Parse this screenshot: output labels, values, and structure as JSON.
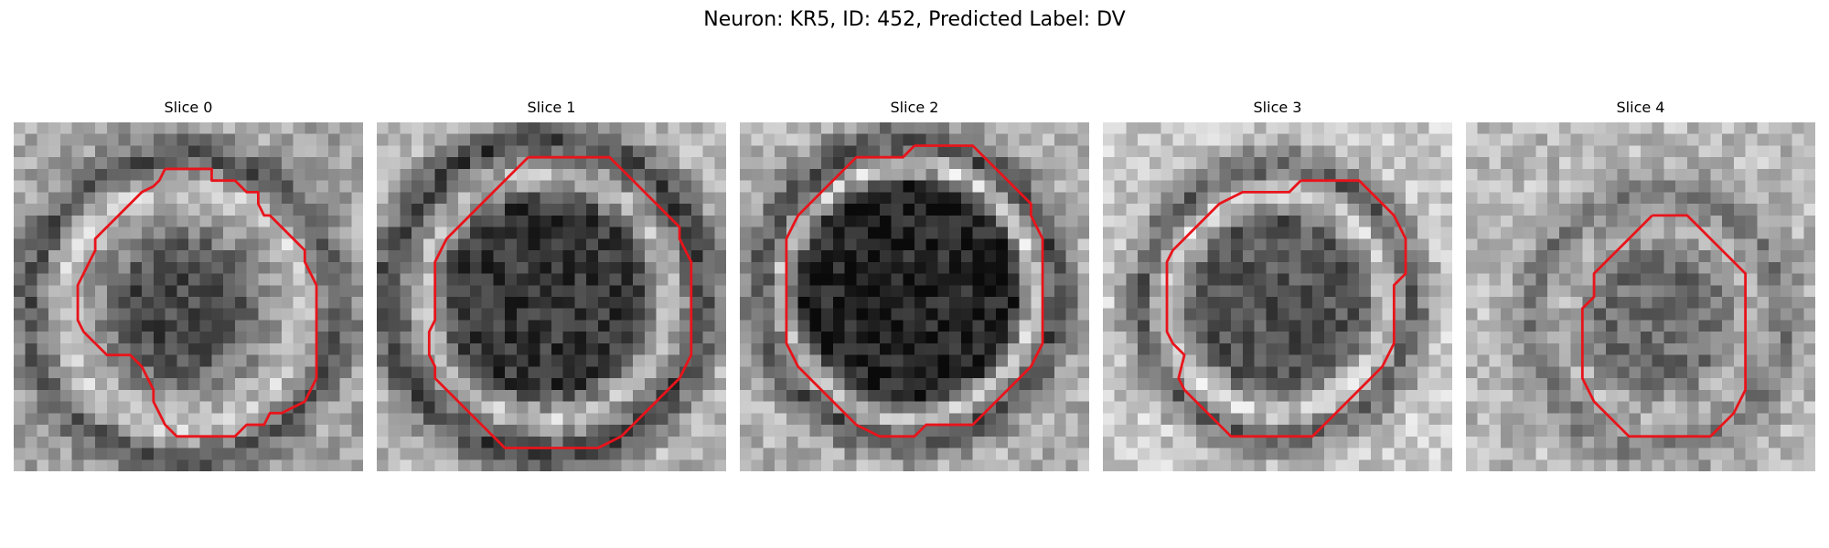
{
  "figure": {
    "title": "Neuron: KR5, ID: 452, Predicted Label: DV"
  },
  "panels": [
    {
      "title": "Slice 0"
    },
    {
      "title": "Slice 1"
    },
    {
      "title": "Slice 2"
    },
    {
      "title": "Slice 3"
    },
    {
      "title": "Slice 4"
    }
  ],
  "colors": {
    "contour": "#e8141b",
    "background": "#ffffff"
  }
}
